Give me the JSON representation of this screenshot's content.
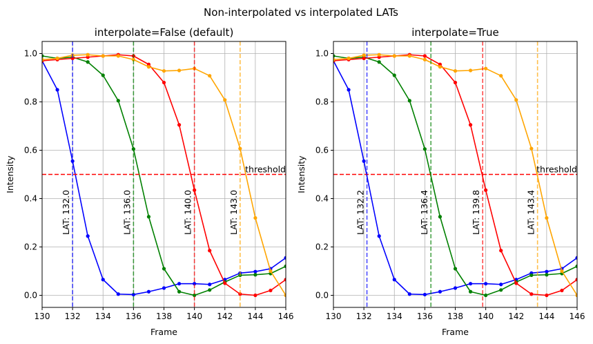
{
  "figure": {
    "suptitle": "Non-interpolated vs interpolated LATs"
  },
  "chart_data": [
    {
      "type": "line",
      "title": "interpolate=False (default)",
      "xlabel": "Frame",
      "ylabel": "Intensity",
      "xlim": [
        130,
        146
      ],
      "ylim": [
        -0.05,
        1.05
      ],
      "xticks": [
        130,
        132,
        134,
        136,
        138,
        140,
        142,
        144,
        146
      ],
      "yticks": [
        0.0,
        0.2,
        0.4,
        0.6,
        0.8,
        1.0
      ],
      "xtick_labels": [
        "130",
        "132",
        "134",
        "136",
        "138",
        "140",
        "142",
        "144",
        "146"
      ],
      "ytick_labels": [
        "0.0",
        "0.2",
        "0.4",
        "0.6",
        "0.8",
        "1.0"
      ],
      "grid": true,
      "threshold": {
        "value": 0.5,
        "label": "threshold",
        "color": "#ff0000"
      },
      "series": [
        {
          "color": "#0000ff",
          "x": [
            130,
            131,
            132,
            133,
            134,
            135,
            136,
            137,
            138,
            139,
            140,
            141,
            142,
            143,
            144,
            145,
            146
          ],
          "y": [
            0.97,
            0.85,
            0.555,
            0.245,
            0.065,
            0.005,
            0.003,
            0.015,
            0.03,
            0.048,
            0.048,
            0.045,
            0.065,
            0.092,
            0.098,
            0.11,
            0.155
          ]
        },
        {
          "color": "#008000",
          "x": [
            130,
            131,
            132,
            133,
            134,
            135,
            136,
            137,
            138,
            139,
            140,
            141,
            142,
            143,
            144,
            145,
            146
          ],
          "y": [
            0.99,
            0.98,
            0.985,
            0.965,
            0.91,
            0.805,
            0.605,
            0.325,
            0.11,
            0.015,
            0.0,
            0.022,
            0.055,
            0.083,
            0.085,
            0.09,
            0.12
          ]
        },
        {
          "color": "#ff0000",
          "x": [
            130,
            131,
            132,
            133,
            134,
            135,
            136,
            137,
            138,
            139,
            140,
            141,
            142,
            143,
            144,
            145,
            146
          ],
          "y": [
            0.97,
            0.975,
            0.98,
            0.985,
            0.99,
            0.995,
            0.99,
            0.955,
            0.88,
            0.705,
            0.435,
            0.185,
            0.05,
            0.005,
            0.0,
            0.02,
            0.065
          ]
        },
        {
          "color": "#ffa500",
          "x": [
            130,
            131,
            132,
            133,
            134,
            135,
            136,
            137,
            138,
            139,
            140,
            141,
            142,
            143,
            144,
            145,
            146
          ],
          "y": [
            0.975,
            0.98,
            0.993,
            0.995,
            0.99,
            0.99,
            0.975,
            0.945,
            0.928,
            0.93,
            0.938,
            0.908,
            0.808,
            0.607,
            0.32,
            0.1,
            0.0
          ]
        }
      ],
      "lat_lines": [
        {
          "x": 132.0,
          "label": "LAT: 132.0",
          "color": "#0000ff"
        },
        {
          "x": 136.0,
          "label": "LAT: 136.0",
          "color": "#008000"
        },
        {
          "x": 140.0,
          "label": "LAT: 140.0",
          "color": "#ff0000"
        },
        {
          "x": 143.0,
          "label": "LAT: 143.0",
          "color": "#ffa500"
        }
      ]
    },
    {
      "type": "line",
      "title": "interpolate=True",
      "xlabel": "Frame",
      "ylabel": "Intensity",
      "xlim": [
        130,
        146
      ],
      "ylim": [
        -0.05,
        1.05
      ],
      "xticks": [
        130,
        132,
        134,
        136,
        138,
        140,
        142,
        144,
        146
      ],
      "yticks": [
        0.0,
        0.2,
        0.4,
        0.6,
        0.8,
        1.0
      ],
      "xtick_labels": [
        "130",
        "132",
        "134",
        "136",
        "138",
        "140",
        "142",
        "144",
        "146"
      ],
      "ytick_labels": [
        "0.0",
        "0.2",
        "0.4",
        "0.6",
        "0.8",
        "1.0"
      ],
      "grid": true,
      "threshold": {
        "value": 0.5,
        "label": "threshold",
        "color": "#ff0000"
      },
      "series": [
        {
          "color": "#0000ff",
          "x": [
            130,
            131,
            132,
            133,
            134,
            135,
            136,
            137,
            138,
            139,
            140,
            141,
            142,
            143,
            144,
            145,
            146
          ],
          "y": [
            0.97,
            0.85,
            0.555,
            0.245,
            0.065,
            0.005,
            0.003,
            0.015,
            0.03,
            0.048,
            0.048,
            0.045,
            0.065,
            0.092,
            0.098,
            0.11,
            0.155
          ]
        },
        {
          "color": "#008000",
          "x": [
            130,
            131,
            132,
            133,
            134,
            135,
            136,
            137,
            138,
            139,
            140,
            141,
            142,
            143,
            144,
            145,
            146
          ],
          "y": [
            0.99,
            0.98,
            0.985,
            0.965,
            0.91,
            0.805,
            0.605,
            0.325,
            0.11,
            0.015,
            0.0,
            0.022,
            0.055,
            0.083,
            0.085,
            0.09,
            0.12
          ]
        },
        {
          "color": "#ff0000",
          "x": [
            130,
            131,
            132,
            133,
            134,
            135,
            136,
            137,
            138,
            139,
            140,
            141,
            142,
            143,
            144,
            145,
            146
          ],
          "y": [
            0.97,
            0.975,
            0.98,
            0.985,
            0.99,
            0.995,
            0.99,
            0.955,
            0.88,
            0.705,
            0.435,
            0.185,
            0.05,
            0.005,
            0.0,
            0.02,
            0.065
          ]
        },
        {
          "color": "#ffa500",
          "x": [
            130,
            131,
            132,
            133,
            134,
            135,
            136,
            137,
            138,
            139,
            140,
            141,
            142,
            143,
            144,
            145,
            146
          ],
          "y": [
            0.975,
            0.98,
            0.993,
            0.995,
            0.99,
            0.99,
            0.975,
            0.945,
            0.928,
            0.93,
            0.938,
            0.908,
            0.808,
            0.607,
            0.32,
            0.1,
            0.0
          ]
        }
      ],
      "lat_lines": [
        {
          "x": 132.2,
          "label": "LAT: 132.2",
          "color": "#0000ff"
        },
        {
          "x": 136.4,
          "label": "LAT: 136.4",
          "color": "#008000"
        },
        {
          "x": 139.8,
          "label": "LAT: 139.8",
          "color": "#ff0000"
        },
        {
          "x": 143.4,
          "label": "LAT: 143.4",
          "color": "#ffa500"
        }
      ]
    }
  ]
}
